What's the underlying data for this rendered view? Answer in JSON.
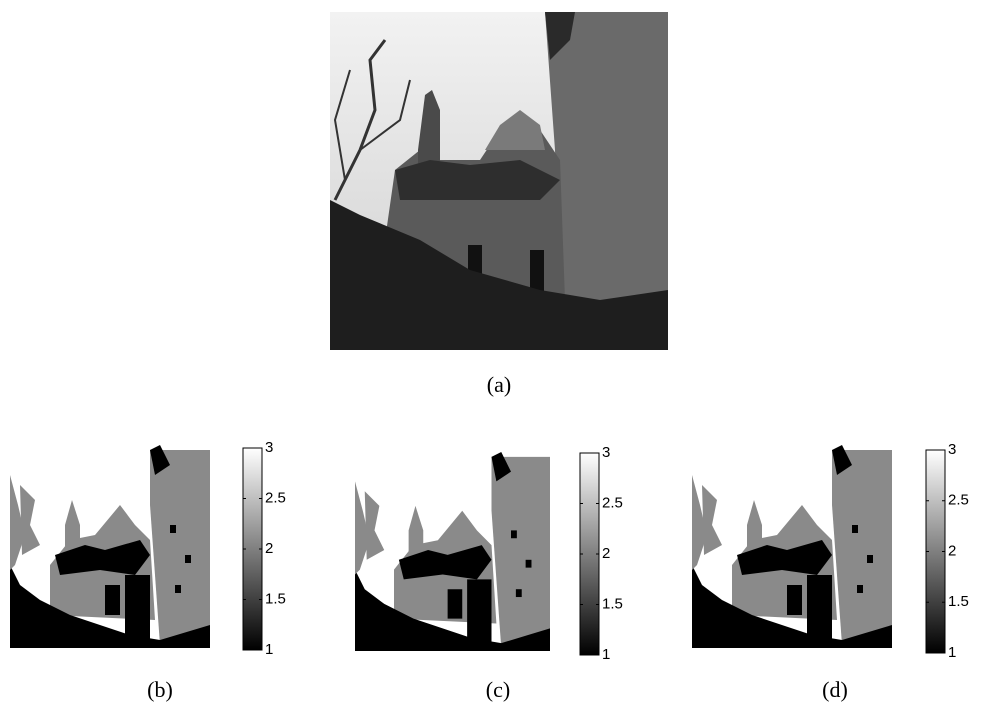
{
  "panels": [
    {
      "caption": "(a)"
    },
    {
      "caption": "(b)",
      "colorbar": {
        "lim": [
          1,
          3
        ],
        "ticks": [
          1,
          1.5,
          2,
          2.5,
          3
        ]
      }
    },
    {
      "caption": "(c)",
      "colorbar": {
        "lim": [
          1,
          3
        ],
        "ticks": [
          1,
          1.5,
          2,
          2.5,
          3
        ]
      }
    },
    {
      "caption": "(d)",
      "colorbar": {
        "lim": [
          1,
          3
        ],
        "ticks": [
          1,
          1.5,
          2,
          2.5,
          3
        ]
      }
    }
  ]
}
